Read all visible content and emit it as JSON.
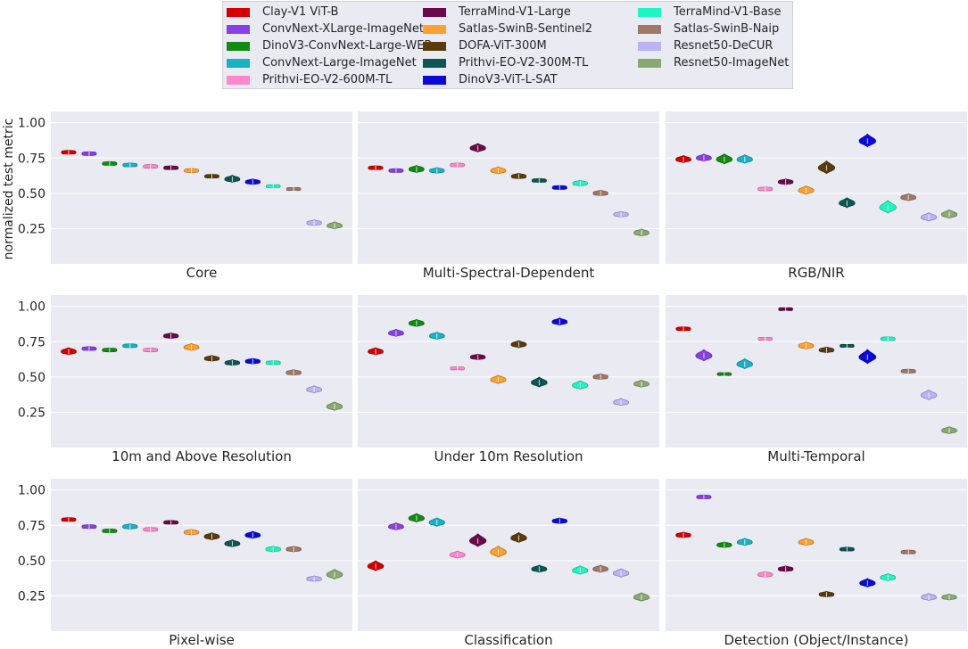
{
  "chart_data": {
    "type": "violin",
    "ylabel": "normalized test metric",
    "yticks": [
      "1.00",
      "0.75",
      "0.50",
      "0.25"
    ],
    "ylim": [
      0.0,
      1.08
    ],
    "legend_position": "top-center",
    "models": [
      {
        "name": "Clay-V1 ViT-B",
        "color": "#d40000"
      },
      {
        "name": "ConvNext-XLarge-ImageNet",
        "color": "#8a3ee8"
      },
      {
        "name": "DinoV3-ConvNext-Large-WEB",
        "color": "#118c11"
      },
      {
        "name": "ConvNext-Large-ImageNet",
        "color": "#17b3c4"
      },
      {
        "name": "Prithvi-EO-V2-600M-TL",
        "color": "#ff88cc"
      },
      {
        "name": "TerraMind-V1-Large",
        "color": "#6a0a4a"
      },
      {
        "name": "Satlas-SwinB-Sentinel2",
        "color": "#ffa030"
      },
      {
        "name": "DOFA-ViT-300M",
        "color": "#5a3c0c"
      },
      {
        "name": "Prithvi-EO-V2-300M-TL",
        "color": "#0c5654"
      },
      {
        "name": "DinoV3-ViT-L-SAT",
        "color": "#0a0ad8"
      },
      {
        "name": "TerraMind-V1-Base",
        "color": "#1ff5c0"
      },
      {
        "name": "Satlas-SwinB-Naip",
        "color": "#a07868"
      },
      {
        "name": "Resnet50-DeCUR",
        "color": "#b8b4f6"
      },
      {
        "name": "Resnet50-ImageNet",
        "color": "#88aa70"
      }
    ],
    "panels": [
      {
        "title": "Core",
        "medians": [
          0.79,
          0.78,
          0.71,
          0.7,
          0.69,
          0.68,
          0.66,
          0.62,
          0.6,
          0.58,
          0.55,
          0.53,
          0.29,
          0.27
        ],
        "spread": [
          0.03,
          0.03,
          0.03,
          0.03,
          0.03,
          0.03,
          0.03,
          0.03,
          0.05,
          0.04,
          0.02,
          0.02,
          0.04,
          0.05
        ]
      },
      {
        "title": "Multi-Spectral-Dependent",
        "medians": [
          0.68,
          0.66,
          0.67,
          0.66,
          0.7,
          0.82,
          0.66,
          0.62,
          0.59,
          0.54,
          0.57,
          0.5,
          0.35,
          0.22
        ],
        "spread": [
          0.03,
          0.03,
          0.05,
          0.04,
          0.03,
          0.06,
          0.05,
          0.04,
          0.03,
          0.03,
          0.04,
          0.04,
          0.04,
          0.05
        ]
      },
      {
        "title": "RGB/NIR",
        "medians": [
          0.74,
          0.75,
          0.74,
          0.74,
          0.53,
          0.58,
          0.52,
          0.68,
          0.43,
          0.87,
          0.4,
          0.47,
          0.33,
          0.35
        ],
        "spread": [
          0.05,
          0.05,
          0.07,
          0.06,
          0.03,
          0.04,
          0.06,
          0.09,
          0.07,
          0.09,
          0.09,
          0.05,
          0.06,
          0.06
        ]
      },
      {
        "title": "10m and Above Resolution",
        "medians": [
          0.68,
          0.7,
          0.69,
          0.72,
          0.69,
          0.79,
          0.71,
          0.63,
          0.6,
          0.61,
          0.6,
          0.53,
          0.41,
          0.29
        ],
        "spread": [
          0.05,
          0.03,
          0.03,
          0.03,
          0.03,
          0.04,
          0.05,
          0.04,
          0.04,
          0.04,
          0.03,
          0.04,
          0.05,
          0.06
        ]
      },
      {
        "title": "Under 10m Resolution",
        "medians": [
          0.68,
          0.81,
          0.88,
          0.79,
          0.56,
          0.64,
          0.48,
          0.73,
          0.46,
          0.89,
          0.44,
          0.5,
          0.32,
          0.45
        ],
        "spread": [
          0.05,
          0.05,
          0.05,
          0.05,
          0.02,
          0.04,
          0.06,
          0.05,
          0.07,
          0.05,
          0.06,
          0.04,
          0.05,
          0.05
        ]
      },
      {
        "title": "Multi-Temporal",
        "medians": [
          0.84,
          0.65,
          0.52,
          0.59,
          0.77,
          0.98,
          0.72,
          0.69,
          0.72,
          0.64,
          0.77,
          0.54,
          0.37,
          0.12
        ],
        "spread": [
          0.03,
          0.08,
          0.02,
          0.07,
          0.02,
          0.02,
          0.05,
          0.04,
          0.02,
          0.1,
          0.03,
          0.03,
          0.07,
          0.05
        ]
      },
      {
        "title": "Pixel-wise",
        "medians": [
          0.79,
          0.74,
          0.71,
          0.74,
          0.72,
          0.77,
          0.7,
          0.67,
          0.62,
          0.68,
          0.58,
          0.58,
          0.37,
          0.4
        ],
        "spread": [
          0.03,
          0.03,
          0.03,
          0.04,
          0.03,
          0.03,
          0.04,
          0.05,
          0.05,
          0.05,
          0.04,
          0.04,
          0.04,
          0.07
        ]
      },
      {
        "title": "Classification",
        "medians": [
          0.46,
          0.74,
          0.8,
          0.77,
          0.54,
          0.64,
          0.56,
          0.66,
          0.44,
          0.78,
          0.43,
          0.44,
          0.41,
          0.24
        ],
        "spread": [
          0.07,
          0.05,
          0.06,
          0.06,
          0.05,
          0.09,
          0.08,
          0.07,
          0.05,
          0.04,
          0.06,
          0.05,
          0.06,
          0.06
        ]
      },
      {
        "title": "Detection (Object/Instance)",
        "medians": [
          0.68,
          0.95,
          0.61,
          0.63,
          0.4,
          0.44,
          0.63,
          0.26,
          0.58,
          0.34,
          0.38,
          0.56,
          0.24,
          0.24
        ],
        "spread": [
          0.04,
          0.03,
          0.04,
          0.05,
          0.04,
          0.04,
          0.05,
          0.04,
          0.03,
          0.06,
          0.05,
          0.03,
          0.05,
          0.04
        ]
      }
    ]
  }
}
